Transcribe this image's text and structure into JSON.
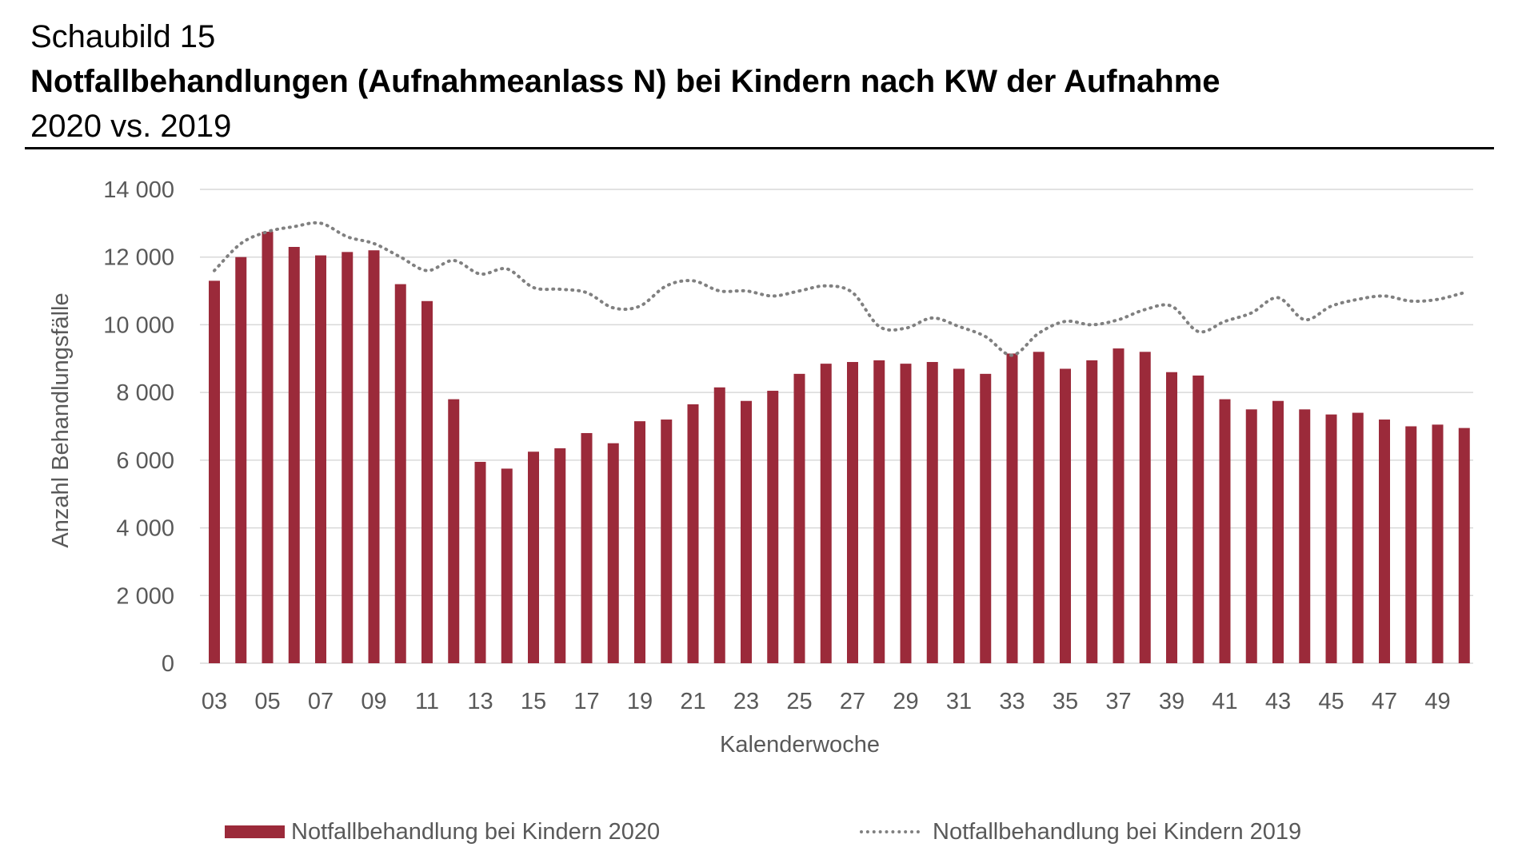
{
  "header": {
    "label": "Schaubild 15",
    "title": "Notfallbehandlungen (Aufnahmeanlass N) bei Kindern nach KW der Aufnahme",
    "subtitle": "2020 vs. 2019"
  },
  "colors": {
    "bar": "#9b2a3a",
    "line": "#808080",
    "grid": "#d9d9d9",
    "text": "#595959"
  },
  "chart_data": {
    "type": "bar",
    "xlabel": "Kalenderwoche",
    "ylabel": "Anzahl Behandlungsfälle",
    "ylim": [
      0,
      14000
    ],
    "yticks": [
      0,
      2000,
      4000,
      6000,
      8000,
      10000,
      12000,
      14000
    ],
    "ytick_labels": [
      "0",
      "2 000",
      "4 000",
      "6 000",
      "8 000",
      "10 000",
      "12 000",
      "14 000"
    ],
    "grid": true,
    "legend_position": "bottom",
    "categories": [
      "03",
      "04",
      "05",
      "06",
      "07",
      "08",
      "09",
      "10",
      "11",
      "12",
      "13",
      "14",
      "15",
      "16",
      "17",
      "18",
      "19",
      "20",
      "21",
      "22",
      "23",
      "24",
      "25",
      "26",
      "27",
      "28",
      "29",
      "30",
      "31",
      "32",
      "33",
      "34",
      "35",
      "36",
      "37",
      "38",
      "39",
      "40",
      "41",
      "42",
      "43",
      "44",
      "45",
      "46",
      "47",
      "48",
      "49",
      "50"
    ],
    "xtick_labels": [
      "03",
      "05",
      "07",
      "09",
      "11",
      "13",
      "15",
      "17",
      "19",
      "21",
      "23",
      "25",
      "27",
      "29",
      "31",
      "33",
      "35",
      "37",
      "39",
      "41",
      "43",
      "45",
      "47",
      "49"
    ],
    "series": [
      {
        "name": "Notfallbehandlung bei Kindern 2020",
        "type": "bar",
        "color": "#9b2a3a",
        "values": [
          11300,
          12000,
          12750,
          12300,
          12050,
          12150,
          12200,
          11200,
          10700,
          7800,
          5950,
          5750,
          6250,
          6350,
          6800,
          6500,
          7150,
          7200,
          7650,
          8150,
          7750,
          8050,
          8550,
          8850,
          8900,
          8950,
          8850,
          8900,
          8700,
          8550,
          9150,
          9200,
          8700,
          8950,
          9300,
          9200,
          8600,
          8500,
          7800,
          7500,
          7750,
          7500,
          7350,
          7400,
          7200,
          7000,
          7050,
          6950
        ]
      },
      {
        "name": "Notfallbehandlung bei Kindern 2019",
        "type": "line",
        "style": "dotted",
        "color": "#808080",
        "values": [
          11600,
          12400,
          12750,
          12900,
          13000,
          12600,
          12400,
          12000,
          11600,
          11900,
          11500,
          11650,
          11100,
          11050,
          10950,
          10500,
          10550,
          11150,
          11300,
          11000,
          11000,
          10850,
          11000,
          11150,
          10950,
          9950,
          9900,
          10200,
          9950,
          9650,
          9100,
          9750,
          10100,
          10000,
          10150,
          10450,
          10550,
          9800,
          10100,
          10350,
          10800,
          10150,
          10550,
          10750,
          10850,
          10700,
          10750,
          10950
        ]
      }
    ]
  }
}
